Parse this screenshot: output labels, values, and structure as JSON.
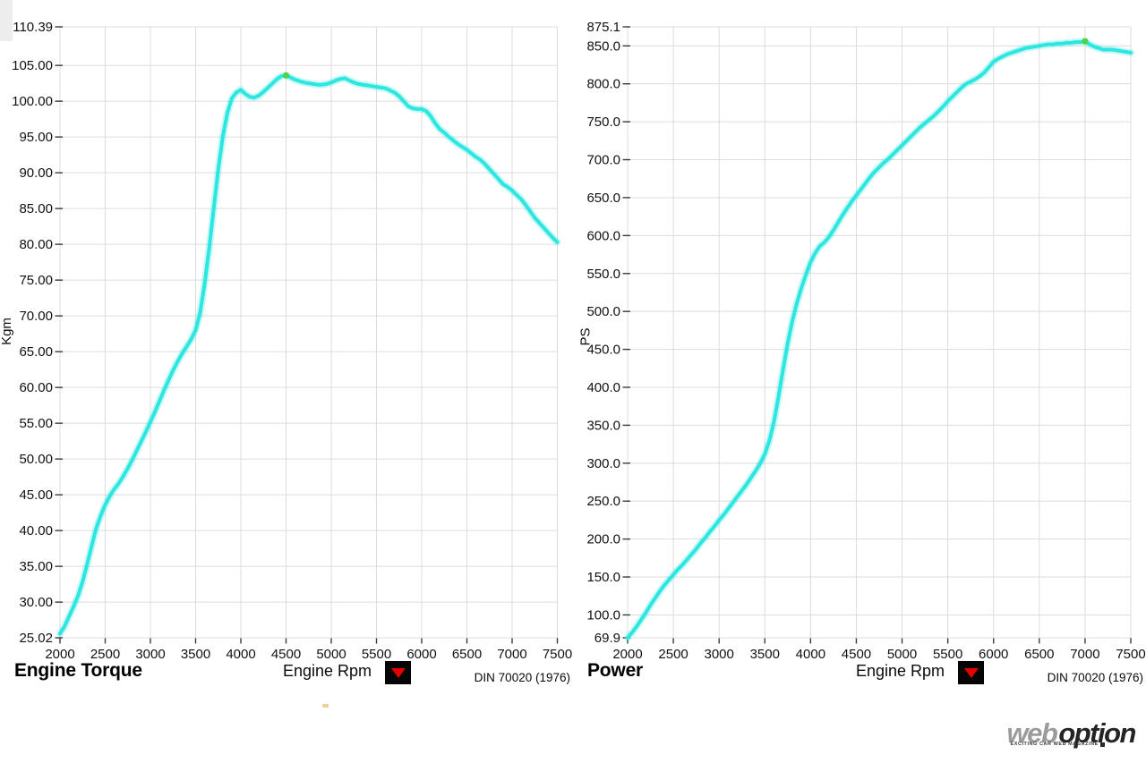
{
  "colors": {
    "curve": "#2ee6e0",
    "curve_glow": "rgba(46,230,224,0.28)",
    "peak_marker": "#4fd24a",
    "grid": "#dcdcdc",
    "tick": "#3a3a3a",
    "tick_text": "#111111",
    "dropdown_bg": "#050505",
    "dropdown_triangle": "#e60000"
  },
  "logo": {
    "web": "web",
    "option": "option",
    "tagline": "EXCITING CAR WEB MAGAZINE"
  },
  "chart_data": [
    {
      "type": "line",
      "title": "Engine Torque",
      "xlabel": "Engine Rpm",
      "ylabel": "Kgm",
      "standard": "DIN 70020 (1976)",
      "xlim": [
        2000,
        7500
      ],
      "ylim": [
        25.02,
        110.39
      ],
      "x_ticks": [
        2000,
        2500,
        3000,
        3500,
        4000,
        4500,
        5000,
        5500,
        6000,
        6500,
        7000,
        7500
      ],
      "y_ticks": [
        {
          "v": 110.39,
          "label": "110.39"
        },
        {
          "v": 105,
          "label": "105.00"
        },
        {
          "v": 100,
          "label": "100.00"
        },
        {
          "v": 95,
          "label": "95.00"
        },
        {
          "v": 90,
          "label": "90.00"
        },
        {
          "v": 85,
          "label": "85.00"
        },
        {
          "v": 80,
          "label": "80.00"
        },
        {
          "v": 75,
          "label": "75.00"
        },
        {
          "v": 70,
          "label": "70.00"
        },
        {
          "v": 65,
          "label": "65.00"
        },
        {
          "v": 60,
          "label": "60.00"
        },
        {
          "v": 55,
          "label": "55.00"
        },
        {
          "v": 50,
          "label": "50.00"
        },
        {
          "v": 45,
          "label": "45.00"
        },
        {
          "v": 40,
          "label": "40.00"
        },
        {
          "v": 35,
          "label": "35.00"
        },
        {
          "v": 30,
          "label": "30.00"
        },
        {
          "v": 25.02,
          "label": "25.02"
        }
      ],
      "peak": [
        4500,
        103.6
      ],
      "points": [
        [
          2000,
          25.6
        ],
        [
          2050,
          26.6
        ],
        [
          2100,
          28.0
        ],
        [
          2150,
          29.4
        ],
        [
          2200,
          30.9
        ],
        [
          2250,
          32.9
        ],
        [
          2300,
          35.3
        ],
        [
          2350,
          37.8
        ],
        [
          2400,
          40.3
        ],
        [
          2450,
          42.1
        ],
        [
          2500,
          43.6
        ],
        [
          2550,
          44.8
        ],
        [
          2600,
          45.8
        ],
        [
          2650,
          46.6
        ],
        [
          2700,
          47.6
        ],
        [
          2750,
          48.7
        ],
        [
          2800,
          49.9
        ],
        [
          2850,
          51.2
        ],
        [
          2900,
          52.5
        ],
        [
          2950,
          53.8
        ],
        [
          3000,
          55.2
        ],
        [
          3050,
          56.6
        ],
        [
          3100,
          58.1
        ],
        [
          3150,
          59.6
        ],
        [
          3200,
          61.0
        ],
        [
          3250,
          62.4
        ],
        [
          3300,
          63.6
        ],
        [
          3350,
          64.7
        ],
        [
          3400,
          65.7
        ],
        [
          3450,
          66.7
        ],
        [
          3500,
          68.0
        ],
        [
          3550,
          70.5
        ],
        [
          3600,
          74.5
        ],
        [
          3650,
          79.5
        ],
        [
          3700,
          85.0
        ],
        [
          3750,
          90.5
        ],
        [
          3800,
          95.0
        ],
        [
          3850,
          98.3
        ],
        [
          3900,
          100.4
        ],
        [
          3950,
          101.2
        ],
        [
          4000,
          101.6
        ],
        [
          4050,
          101.0
        ],
        [
          4100,
          100.6
        ],
        [
          4150,
          100.5
        ],
        [
          4200,
          100.8
        ],
        [
          4250,
          101.3
        ],
        [
          4300,
          101.9
        ],
        [
          4350,
          102.5
        ],
        [
          4400,
          103.1
        ],
        [
          4450,
          103.5
        ],
        [
          4500,
          103.6
        ],
        [
          4550,
          103.3
        ],
        [
          4600,
          103.0
        ],
        [
          4650,
          102.8
        ],
        [
          4700,
          102.6
        ],
        [
          4750,
          102.5
        ],
        [
          4800,
          102.4
        ],
        [
          4850,
          102.3
        ],
        [
          4900,
          102.3
        ],
        [
          4950,
          102.4
        ],
        [
          5000,
          102.6
        ],
        [
          5050,
          102.9
        ],
        [
          5100,
          103.1
        ],
        [
          5150,
          103.2
        ],
        [
          5200,
          102.9
        ],
        [
          5250,
          102.6
        ],
        [
          5300,
          102.4
        ],
        [
          5350,
          102.3
        ],
        [
          5400,
          102.2
        ],
        [
          5450,
          102.1
        ],
        [
          5500,
          102.0
        ],
        [
          5550,
          101.9
        ],
        [
          5600,
          101.8
        ],
        [
          5650,
          101.5
        ],
        [
          5700,
          101.2
        ],
        [
          5750,
          100.7
        ],
        [
          5800,
          100.0
        ],
        [
          5850,
          99.3
        ],
        [
          5900,
          99.0
        ],
        [
          5950,
          98.9
        ],
        [
          6000,
          98.9
        ],
        [
          6050,
          98.6
        ],
        [
          6100,
          97.9
        ],
        [
          6150,
          96.9
        ],
        [
          6200,
          96.1
        ],
        [
          6250,
          95.6
        ],
        [
          6300,
          95.0
        ],
        [
          6350,
          94.5
        ],
        [
          6400,
          94.0
        ],
        [
          6450,
          93.6
        ],
        [
          6500,
          93.2
        ],
        [
          6550,
          92.7
        ],
        [
          6600,
          92.2
        ],
        [
          6650,
          91.8
        ],
        [
          6700,
          91.2
        ],
        [
          6750,
          90.5
        ],
        [
          6800,
          89.8
        ],
        [
          6850,
          89.1
        ],
        [
          6900,
          88.4
        ],
        [
          6950,
          88.0
        ],
        [
          7000,
          87.5
        ],
        [
          7050,
          86.9
        ],
        [
          7100,
          86.3
        ],
        [
          7150,
          85.5
        ],
        [
          7200,
          84.6
        ],
        [
          7250,
          83.7
        ],
        [
          7300,
          83.0
        ],
        [
          7350,
          82.3
        ],
        [
          7400,
          81.6
        ],
        [
          7450,
          80.9
        ],
        [
          7500,
          80.3
        ]
      ]
    },
    {
      "type": "line",
      "title": "Power",
      "xlabel": "Engine Rpm",
      "ylabel": "PS",
      "standard": "DIN 70020 (1976)",
      "xlim": [
        2000,
        7500
      ],
      "ylim": [
        69.9,
        875.1
      ],
      "x_ticks": [
        2000,
        2500,
        3000,
        3500,
        4000,
        4500,
        5000,
        5500,
        6000,
        6500,
        7000,
        7500
      ],
      "y_ticks": [
        {
          "v": 875.1,
          "label": "875.1"
        },
        {
          "v": 850,
          "label": "850.0"
        },
        {
          "v": 800,
          "label": "800.0"
        },
        {
          "v": 750,
          "label": "750.0"
        },
        {
          "v": 700,
          "label": "700.0"
        },
        {
          "v": 650,
          "label": "650.0"
        },
        {
          "v": 600,
          "label": "600.0"
        },
        {
          "v": 550,
          "label": "550.0"
        },
        {
          "v": 500,
          "label": "500.0"
        },
        {
          "v": 450,
          "label": "450.0"
        },
        {
          "v": 400,
          "label": "400.0"
        },
        {
          "v": 350,
          "label": "350.0"
        },
        {
          "v": 300,
          "label": "300.0"
        },
        {
          "v": 250,
          "label": "250.0"
        },
        {
          "v": 200,
          "label": "200.0"
        },
        {
          "v": 150,
          "label": "150.0"
        },
        {
          "v": 100,
          "label": "100.0"
        },
        {
          "v": 69.9,
          "label": "69.9"
        }
      ],
      "peak": [
        7000,
        856
      ],
      "points": [
        [
          2000,
          69.9
        ],
        [
          2050,
          77
        ],
        [
          2100,
          85
        ],
        [
          2150,
          94
        ],
        [
          2200,
          103
        ],
        [
          2250,
          113
        ],
        [
          2300,
          122
        ],
        [
          2350,
          131
        ],
        [
          2400,
          139
        ],
        [
          2450,
          146
        ],
        [
          2500,
          153
        ],
        [
          2550,
          160
        ],
        [
          2600,
          166
        ],
        [
          2650,
          173
        ],
        [
          2700,
          180
        ],
        [
          2750,
          187
        ],
        [
          2800,
          195
        ],
        [
          2850,
          202
        ],
        [
          2900,
          210
        ],
        [
          2950,
          217
        ],
        [
          3000,
          225
        ],
        [
          3050,
          232
        ],
        [
          3100,
          240
        ],
        [
          3150,
          248
        ],
        [
          3200,
          256
        ],
        [
          3250,
          264
        ],
        [
          3300,
          272
        ],
        [
          3350,
          281
        ],
        [
          3400,
          290
        ],
        [
          3450,
          300
        ],
        [
          3500,
          312
        ],
        [
          3550,
          330
        ],
        [
          3600,
          355
        ],
        [
          3650,
          388
        ],
        [
          3700,
          424
        ],
        [
          3750,
          458
        ],
        [
          3800,
          487
        ],
        [
          3850,
          511
        ],
        [
          3900,
          531
        ],
        [
          3950,
          549
        ],
        [
          4000,
          565
        ],
        [
          4050,
          577
        ],
        [
          4100,
          586
        ],
        [
          4150,
          591
        ],
        [
          4200,
          598
        ],
        [
          4250,
          607
        ],
        [
          4300,
          617
        ],
        [
          4350,
          627
        ],
        [
          4400,
          636
        ],
        [
          4450,
          645
        ],
        [
          4500,
          653
        ],
        [
          4550,
          661
        ],
        [
          4600,
          669
        ],
        [
          4650,
          677
        ],
        [
          4700,
          684
        ],
        [
          4750,
          690
        ],
        [
          4800,
          696
        ],
        [
          4850,
          701
        ],
        [
          4900,
          707
        ],
        [
          4950,
          713
        ],
        [
          5000,
          719
        ],
        [
          5050,
          725
        ],
        [
          5100,
          731
        ],
        [
          5150,
          737
        ],
        [
          5200,
          743
        ],
        [
          5250,
          748
        ],
        [
          5300,
          753
        ],
        [
          5350,
          758
        ],
        [
          5400,
          764
        ],
        [
          5450,
          770
        ],
        [
          5500,
          777
        ],
        [
          5550,
          783
        ],
        [
          5600,
          789
        ],
        [
          5650,
          795
        ],
        [
          5700,
          800
        ],
        [
          5750,
          803
        ],
        [
          5800,
          806
        ],
        [
          5850,
          810
        ],
        [
          5900,
          815
        ],
        [
          5950,
          822
        ],
        [
          6000,
          829
        ],
        [
          6050,
          833
        ],
        [
          6100,
          836
        ],
        [
          6150,
          839
        ],
        [
          6200,
          841
        ],
        [
          6250,
          843
        ],
        [
          6300,
          845
        ],
        [
          6350,
          847
        ],
        [
          6400,
          848
        ],
        [
          6450,
          849
        ],
        [
          6500,
          850
        ],
        [
          6550,
          851
        ],
        [
          6600,
          852
        ],
        [
          6650,
          852
        ],
        [
          6700,
          853
        ],
        [
          6750,
          853
        ],
        [
          6800,
          854
        ],
        [
          6850,
          854
        ],
        [
          6900,
          855
        ],
        [
          6950,
          855
        ],
        [
          7000,
          856
        ],
        [
          7050,
          852
        ],
        [
          7100,
          849
        ],
        [
          7150,
          847
        ],
        [
          7200,
          845
        ],
        [
          7250,
          845
        ],
        [
          7300,
          845
        ],
        [
          7350,
          844
        ],
        [
          7400,
          843
        ],
        [
          7450,
          842
        ],
        [
          7500,
          841
        ]
      ]
    }
  ]
}
